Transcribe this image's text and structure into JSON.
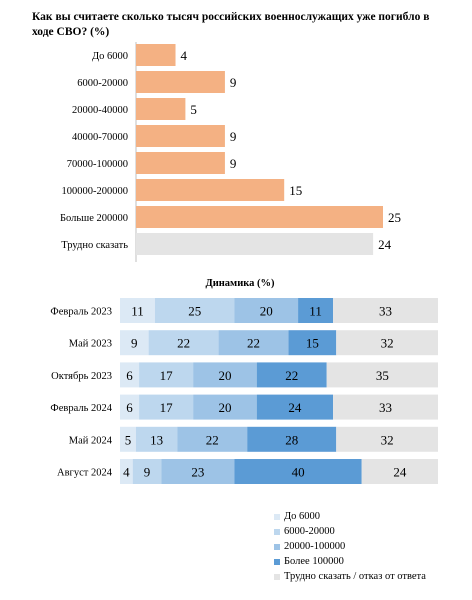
{
  "title": "Как вы считаете сколько тысяч российских военнослужащих уже погибло в ходе СВО? (%)",
  "chart_data": [
    {
      "type": "bar",
      "orientation": "horizontal",
      "categories": [
        "До 6000",
        "6000-20000",
        "20000-40000",
        "40000-70000",
        "70000-100000",
        "100000-200000",
        "Больше 200000",
        "Трудно сказать"
      ],
      "values": [
        4,
        9,
        5,
        9,
        9,
        15,
        25,
        24
      ],
      "colors": [
        "#f4b183",
        "#f4b183",
        "#f4b183",
        "#f4b183",
        "#f4b183",
        "#f4b183",
        "#f4b183",
        "#e4e4e4"
      ],
      "xlim": [
        0,
        25
      ]
    },
    {
      "type": "bar",
      "orientation": "horizontal",
      "stacked": true,
      "title": "Динамика (%)",
      "categories": [
        "Февраль 2023",
        "Май 2023",
        "Октябрь 2023",
        "Февраль 2024",
        "Май 2024",
        "Август 2024"
      ],
      "series": [
        {
          "name": "До 6000",
          "color": "#dce9f5",
          "values": [
            11,
            9,
            6,
            6,
            5,
            4
          ]
        },
        {
          "name": "6000-20000",
          "color": "#bdd7ee",
          "values": [
            25,
            22,
            17,
            17,
            13,
            9
          ]
        },
        {
          "name": "20000-100000",
          "color": "#9dc3e6",
          "values": [
            20,
            22,
            20,
            20,
            22,
            23
          ]
        },
        {
          "name": "Более 100000",
          "color": "#5b9bd5",
          "values": [
            11,
            15,
            22,
            24,
            28,
            40
          ]
        },
        {
          "name": "Трудно сказать / отказ от ответа",
          "color": "#e4e4e4",
          "values": [
            33,
            32,
            35,
            33,
            32,
            24
          ]
        }
      ],
      "legend_position": "bottom-right"
    }
  ]
}
